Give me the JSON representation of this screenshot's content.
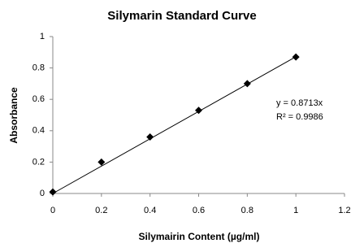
{
  "chart_data": {
    "type": "scatter",
    "title": "Silymarin Standard Curve",
    "x_label": "Silymairin Content (µg/ml)",
    "y_label": "Absorbance",
    "series": [
      {
        "name": "Absorbance",
        "color": "#000000",
        "x": [
          0,
          0.2,
          0.4,
          0.6,
          0.8,
          1
        ],
        "values": [
          0.01,
          0.2,
          0.36,
          0.53,
          0.7,
          0.87
        ]
      }
    ],
    "trendline": {
      "color": "#000000",
      "x": [
        0,
        1
      ],
      "values": [
        0,
        0.8713
      ]
    },
    "annotations": [
      "y = 0.8713x",
      "R² = 0.9986"
    ],
    "xlim": [
      0,
      1.2
    ],
    "xticks": [
      0,
      0.2,
      0.4,
      0.6,
      0.8,
      1,
      1.2
    ],
    "ylim": [
      0,
      1
    ],
    "yticks": [
      0,
      0.2,
      0.4,
      0.6,
      0.8,
      1
    ],
    "grid": false
  }
}
